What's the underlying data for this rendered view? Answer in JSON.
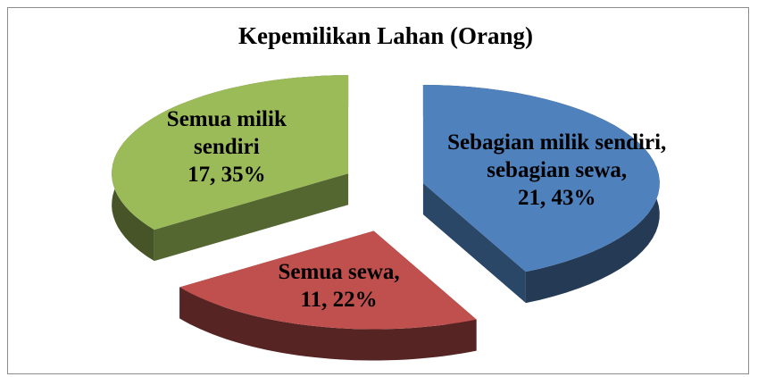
{
  "chart_data": {
    "type": "pie3d",
    "title": "Kepemilikan Lahan (Orang)",
    "categories": [
      "Sebagian milik sendiri, sebagian sewa,",
      "Semua sewa,",
      "Semua milik sendiri"
    ],
    "values": [
      21,
      11,
      17
    ],
    "value_labels": [
      "21, 43%",
      "11, 22%",
      "17, 35%"
    ],
    "colors": [
      "#4f81bd",
      "#c0504d",
      "#9bbb59"
    ]
  }
}
